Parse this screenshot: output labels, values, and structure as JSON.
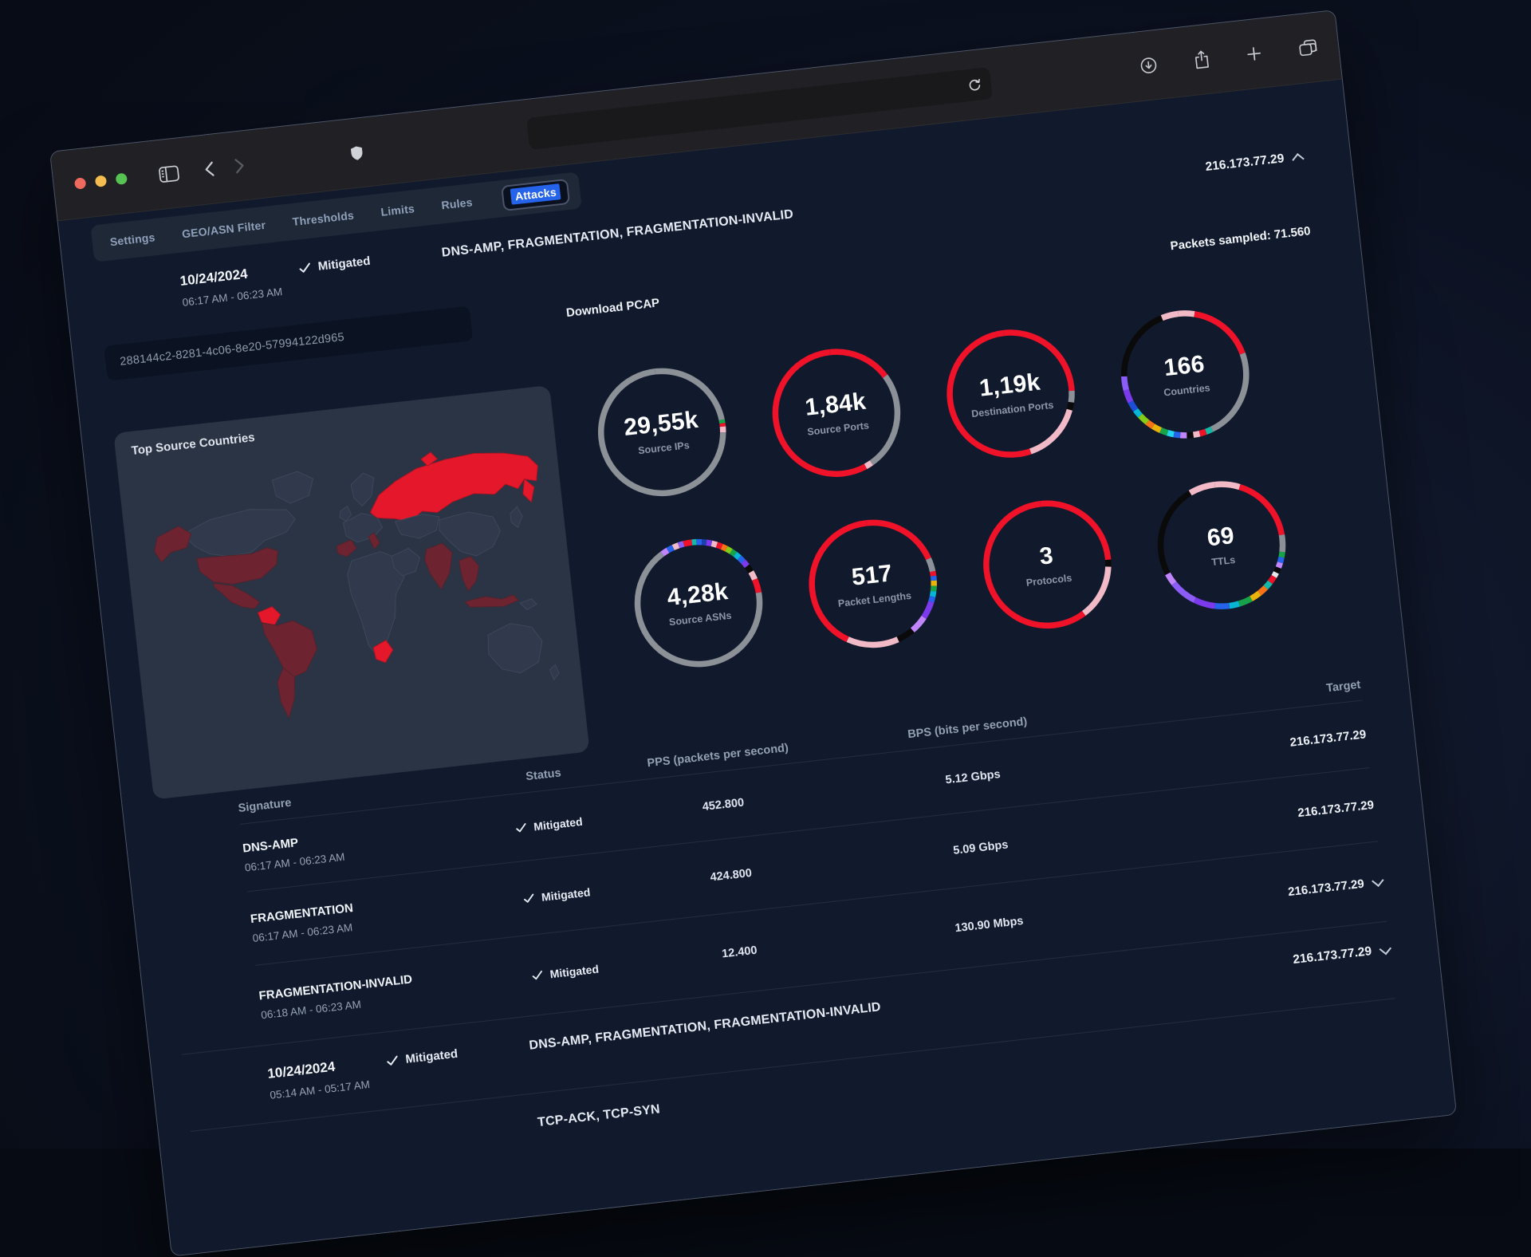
{
  "theme": {
    "accent": "#2563eb",
    "red": "#ef1228",
    "panel": "#2b3444",
    "map-base": "#303a4c",
    "map-warm": "#6e2430",
    "map-hot": "#e5182b",
    "ring-gray": "#8c9097"
  },
  "nav": {
    "tabs": [
      "Settings",
      "GEO/ASN Filter",
      "Thresholds",
      "Limits",
      "Rules",
      "Attacks"
    ],
    "active_tab": "Attacks"
  },
  "attack": {
    "date": "10/24/2024",
    "time_range": "06:17 AM - 06:23 AM",
    "status": "Mitigated",
    "signatures": "DNS-AMP, FRAGMENTATION, FRAGMENTATION-INVALID",
    "target_ip": "216.173.77.29",
    "packets_sampled": "Packets sampled: 71.560",
    "id": "288144c2-8281-4c06-8e20-57994122d965",
    "download_pcap": "Download PCAP",
    "map_title": "Top Source Countries",
    "gauges": [
      {
        "value": "29,55k",
        "label": "Source IPs",
        "segments": [
          [
            "#8c9097",
            23.5
          ],
          [
            "#16a34a",
            0.9
          ],
          [
            "#ef1228",
            0.9
          ],
          [
            "#f2bac7",
            1.5
          ],
          [
            "#8c9097",
            73.2
          ]
        ]
      },
      {
        "value": "1,84k",
        "label": "Source Ports",
        "segments": [
          [
            "#ef1228",
            16.5
          ],
          [
            "#8c9097",
            25.5
          ],
          [
            "#f2bac7",
            1.8
          ],
          [
            "#ef1228",
            56.2
          ]
        ]
      },
      {
        "value": "1,19k",
        "label": "Destination Ports",
        "segments": [
          [
            "#ef1228",
            26
          ],
          [
            "#8c9097",
            3
          ],
          [
            "#0a0a0a",
            2
          ],
          [
            "#f2bac7",
            15.5
          ],
          [
            "#ef1228",
            53.5
          ]
        ]
      },
      {
        "value": "166",
        "label": "Countries",
        "segments": [
          [
            "#f2bac7",
            4.2
          ],
          [
            "#ef1228",
            17
          ],
          [
            "#8c9097",
            23.3
          ],
          [
            "#14b8a6",
            1.7
          ],
          [
            "#ef1228",
            1.7
          ],
          [
            "#f2bac7",
            1.7
          ],
          [
            "#0a0a0a",
            1.7
          ],
          [
            "#c084fc",
            1.7
          ],
          [
            "#2563eb",
            1.7
          ],
          [
            "#22d3ee",
            1.7
          ],
          [
            "#16a34a",
            1.9
          ],
          [
            "#eab308",
            2.2
          ],
          [
            "#f97316",
            1.9
          ],
          [
            "#84cc16",
            2.5
          ],
          [
            "#06b6d4",
            1.9
          ],
          [
            "#1d4ed8",
            2.5
          ],
          [
            "#7c3aed",
            3.3
          ],
          [
            "#8b5cf6",
            3.6
          ],
          [
            "#0a0a0a",
            19.3
          ],
          [
            "#f2bac7",
            4.5
          ]
        ]
      },
      {
        "value": "4,28k",
        "label": "Source ASNs",
        "segments": [
          [
            "#14b8a6",
            1.2
          ],
          [
            "#2563eb",
            1.4
          ],
          [
            "#1e40af",
            1.2
          ],
          [
            "#7c3aed",
            1.4
          ],
          [
            "#f2bac7",
            1.4
          ],
          [
            "#ef1228",
            1.4
          ],
          [
            "#f97316",
            1.3
          ],
          [
            "#84cc16",
            1.4
          ],
          [
            "#16a34a",
            1.3
          ],
          [
            "#06b6d4",
            1.4
          ],
          [
            "#2563eb",
            1.4
          ],
          [
            "#7c3aed",
            1.6
          ],
          [
            "#0a0a0a",
            1.8
          ],
          [
            "#f2bac7",
            2.2
          ],
          [
            "#ef1228",
            3.6
          ],
          [
            "#8c9097",
            67.6
          ],
          [
            "#c084fc",
            1.7
          ],
          [
            "#2563eb",
            1.6
          ],
          [
            "#f2bac7",
            1.5
          ],
          [
            "#8b5cf6",
            1.4
          ],
          [
            "#ef1228",
            2.2
          ]
        ]
      },
      {
        "value": "517",
        "label": "Packet Lengths",
        "segments": [
          [
            "#ef1228",
            20
          ],
          [
            "#8c9097",
            3.5
          ],
          [
            "#ef1228",
            1.2
          ],
          [
            "#2563eb",
            1.2
          ],
          [
            "#eab308",
            1.4
          ],
          [
            "#16a34a",
            1.4
          ],
          [
            "#06b6d4",
            1.4
          ],
          [
            "#2563eb",
            1.4
          ],
          [
            "#7c3aed",
            4.5
          ],
          [
            "#c084fc",
            4.5
          ],
          [
            "#0a0a0a",
            4.5
          ],
          [
            "#f2bac7",
            13.5
          ],
          [
            "#ef1228",
            41.5
          ]
        ]
      },
      {
        "value": "3",
        "label": "Protocols",
        "segments": [
          [
            "#ef1228",
            25.5
          ],
          [
            "#0a0a0a",
            1.8
          ],
          [
            "#f2bac7",
            14.2
          ],
          [
            "#ef1228",
            58.5
          ]
        ]
      },
      {
        "value": "69",
        "label": "TTLs",
        "segments": [
          [
            "#f2bac7",
            6.5
          ],
          [
            "#ef1228",
            17.5
          ],
          [
            "#8c9097",
            4.5
          ],
          [
            "#16a34a",
            1.4
          ],
          [
            "#2563eb",
            1.4
          ],
          [
            "#c084fc",
            1.4
          ],
          [
            "#0a0a0a",
            1.4
          ],
          [
            "#e5e7eb",
            1.2
          ],
          [
            "#ef1228",
            1.8
          ],
          [
            "#14b8a6",
            1.8
          ],
          [
            "#f97316",
            2.2
          ],
          [
            "#eab308",
            2.6
          ],
          [
            "#16a34a",
            3.4
          ],
          [
            "#06b6d4",
            2.6
          ],
          [
            "#2563eb",
            3.8
          ],
          [
            "#7c3aed",
            5.5
          ],
          [
            "#8b5cf6",
            7.0
          ],
          [
            "#c084fc",
            3.0
          ],
          [
            "#0a0a0a",
            24.1
          ],
          [
            "#f2bac7",
            6.9
          ]
        ]
      }
    ],
    "table": {
      "headers": [
        "Signature",
        "Status",
        "PPS (packets per second)",
        "BPS (bits per second)",
        "Target"
      ],
      "rows": [
        {
          "signature": "DNS-AMP",
          "time": "06:17 AM - 06:23 AM",
          "status": "Mitigated",
          "pps": "452.800",
          "bps": "5.12 Gbps",
          "target": "216.173.77.29"
        },
        {
          "signature": "FRAGMENTATION",
          "time": "06:17 AM - 06:23 AM",
          "status": "Mitigated",
          "pps": "424.800",
          "bps": "5.09 Gbps",
          "target": "216.173.77.29"
        },
        {
          "signature": "FRAGMENTATION-INVALID",
          "time": "06:18 AM - 06:23 AM",
          "status": "Mitigated",
          "pps": "12.400",
          "bps": "130.90 Mbps",
          "target": "216.173.77.29"
        }
      ]
    }
  },
  "next_attack": {
    "date": "10/24/2024",
    "time_range": "05:14 AM - 05:17 AM",
    "status": "Mitigated",
    "signatures": "DNS-AMP, FRAGMENTATION, FRAGMENTATION-INVALID",
    "target_ip": "216.173.77.29"
  },
  "partial_attack": {
    "signatures": "TCP-ACK, TCP-SYN"
  }
}
